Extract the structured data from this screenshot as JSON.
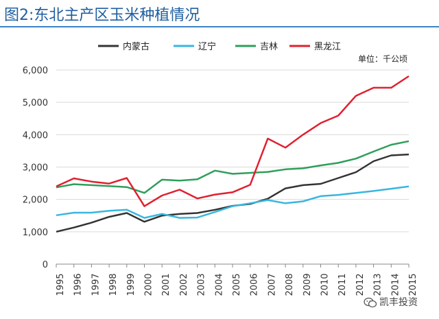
{
  "header": {
    "title": "图2:东北主产区玉米种植情况"
  },
  "watermark": {
    "text": "凯丰投资",
    "icon": "wechat-icon"
  },
  "chart_data": {
    "type": "line",
    "unit_label": "单位：千公顷",
    "categories": [
      "1995",
      "1996",
      "1997",
      "1998",
      "1999",
      "2000",
      "2001",
      "2002",
      "2003",
      "2004",
      "2005",
      "2006",
      "2007",
      "2008",
      "2009",
      "2010",
      "2011",
      "2012",
      "2013",
      "2014",
      "2015"
    ],
    "ylim": [
      0,
      6000
    ],
    "yticks": [
      "0",
      "1,000",
      "2,000",
      "3,000",
      "4,000",
      "5,000",
      "6,000"
    ],
    "ytick_values": [
      0,
      1000,
      2000,
      3000,
      4000,
      5000,
      6000
    ],
    "legend_position": "top",
    "grid": "horizontal",
    "series": [
      {
        "name": "内蒙古",
        "color": "#333333",
        "values": [
          1000,
          1130,
          1280,
          1460,
          1580,
          1310,
          1500,
          1550,
          1580,
          1680,
          1800,
          1860,
          2020,
          2340,
          2440,
          2480,
          2660,
          2840,
          3180,
          3360,
          3390
        ]
      },
      {
        "name": "辽宁",
        "color": "#38b6e0",
        "values": [
          1510,
          1590,
          1590,
          1650,
          1680,
          1430,
          1550,
          1430,
          1440,
          1610,
          1790,
          1880,
          1980,
          1880,
          1940,
          2100,
          2140,
          2200,
          2260,
          2330,
          2400
        ]
      },
      {
        "name": "吉林",
        "color": "#2e9e5a",
        "values": [
          2370,
          2470,
          2440,
          2410,
          2380,
          2200,
          2610,
          2580,
          2620,
          2890,
          2790,
          2820,
          2850,
          2930,
          2960,
          3050,
          3130,
          3260,
          3480,
          3690,
          3800
        ]
      },
      {
        "name": "黑龙江",
        "color": "#e0202f",
        "values": [
          2400,
          2650,
          2550,
          2490,
          2660,
          1790,
          2120,
          2300,
          2030,
          2150,
          2220,
          2450,
          3880,
          3600,
          4000,
          4360,
          4590,
          5200,
          5450,
          5450,
          5810
        ]
      }
    ]
  }
}
